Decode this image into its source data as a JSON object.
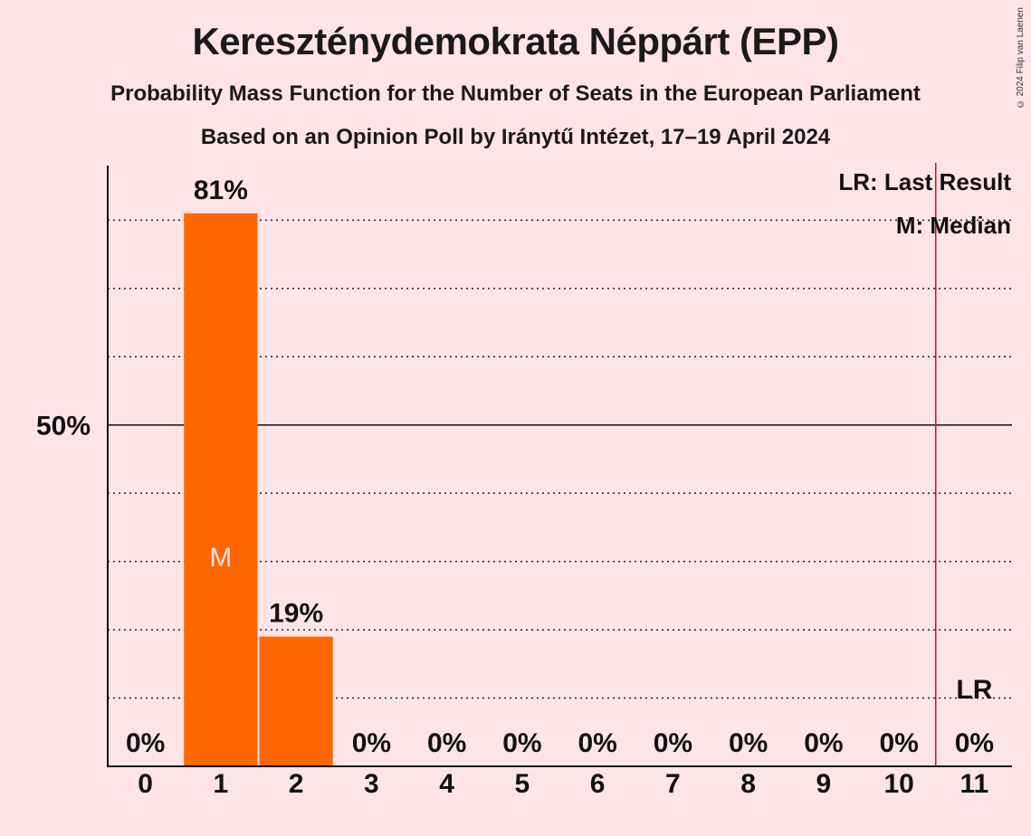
{
  "title": "Kereszténydemokrata Néppárt (EPP)",
  "subtitle1": "Probability Mass Function for the Number of Seats in the European Parliament",
  "subtitle2": "Based on an Opinion Poll by Iránytű Intézet, 17–19 April 2024",
  "copyright": "© 2024 Filip van Laenen",
  "legend": {
    "lr": "LR: Last Result",
    "m": "M: Median"
  },
  "colors": {
    "bar": "#ff6600",
    "lr_line": "#c8102e",
    "background": "#fce4e7"
  },
  "chart_data": {
    "type": "bar",
    "categories": [
      "0",
      "1",
      "2",
      "3",
      "4",
      "5",
      "6",
      "7",
      "8",
      "9",
      "10",
      "11"
    ],
    "values": [
      0,
      81,
      19,
      0,
      0,
      0,
      0,
      0,
      0,
      0,
      0,
      0
    ],
    "value_labels": [
      "0%",
      "81%",
      "19%",
      "0%",
      "0%",
      "0%",
      "0%",
      "0%",
      "0%",
      "0%",
      "0%",
      "0%"
    ],
    "ylim": [
      0,
      88
    ],
    "y_tick_label": "50%",
    "y_tick_value": 50,
    "gridlines": [
      10,
      20,
      30,
      40,
      60,
      70,
      80
    ],
    "median_seat": 1,
    "median_label": "M",
    "last_result_seat": 11,
    "last_result_label": "LR"
  }
}
